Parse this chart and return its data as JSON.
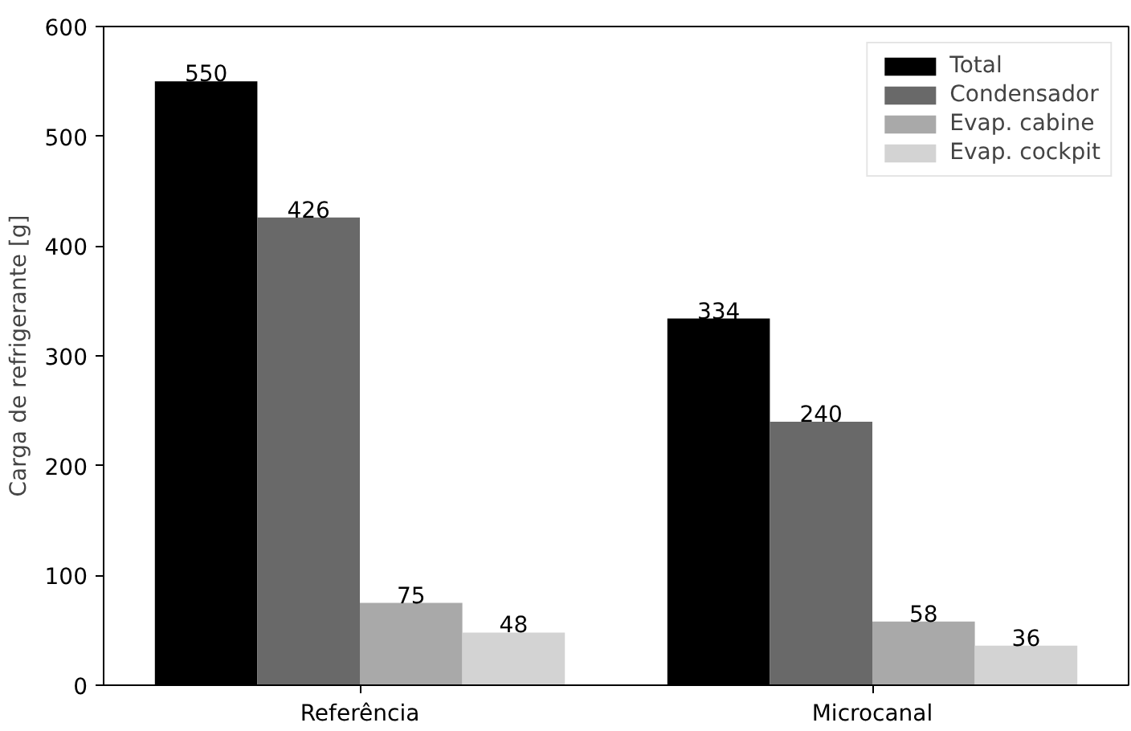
{
  "chart_data": {
    "type": "bar",
    "ylabel": "Carga de refrigerante [g]",
    "categories": [
      "Referência",
      "Microcanal"
    ],
    "series": [
      {
        "name": "Total",
        "color": "#000000",
        "values": [
          550,
          334
        ]
      },
      {
        "name": "Condensador",
        "color": "#696969",
        "values": [
          426,
          240
        ]
      },
      {
        "name": "Evap. cabine",
        "color": "#a9a9a9",
        "values": [
          75,
          58
        ]
      },
      {
        "name": "Evap. cockpit",
        "color": "#d3d3d3",
        "values": [
          48,
          36
        ]
      }
    ],
    "ylim": [
      0,
      600
    ],
    "yticks": [
      0,
      100,
      200,
      300,
      400,
      500,
      600
    ],
    "data_labels": true,
    "legend": "top right",
    "grid": false
  }
}
